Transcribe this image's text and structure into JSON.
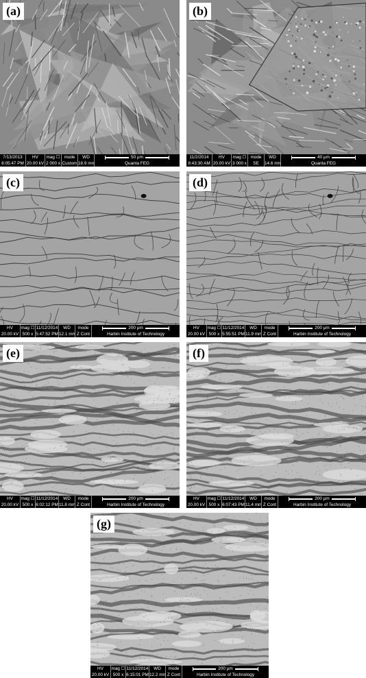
{
  "panels": [
    {
      "label": "(a)",
      "hv_label": "HV",
      "mag_label": "mag ☐",
      "mode_label": "mode",
      "wd_label": "WD",
      "date": "7/13/2013",
      "time": "8:05:47 PM",
      "hv": "20.00 kV",
      "mag": "2 000 x",
      "mode": "Custom",
      "wd": "18.9 mm",
      "scale": "50 μm",
      "instrument": "Quanta FEG"
    },
    {
      "label": "(b)",
      "hv_label": "HV",
      "mag_label": "mag ☐",
      "mode_label": "mode",
      "wd_label": "WD",
      "date": "11/2/2014",
      "time": "8:43:30 AM",
      "hv": "20.00 kV",
      "mag": "3 000 x",
      "mode": "SE",
      "wd": "14.6 mm",
      "scale": "40 μm",
      "instrument": "Quanta FEG"
    },
    {
      "label": "(c)",
      "hv_label": "HV",
      "mag_label": "mag ☐",
      "mode_label": "mode",
      "wd_label": "WD",
      "date": "11/12/2014",
      "time": "5:47:52 PM",
      "hv": "20.00 kV",
      "mag": "500 x",
      "mode": "Z Cont",
      "wd": "12.1 mm",
      "scale": "200 μm",
      "instrument": "Harbin Institute of Technology"
    },
    {
      "label": "(d)",
      "hv_label": "HV",
      "mag_label": "mag ☐",
      "mode_label": "mode",
      "wd_label": "WD",
      "date": "11/12/2014",
      "time": "5:55:51 PM",
      "hv": "20.00 kV",
      "mag": "500 x",
      "mode": "Z Cont",
      "wd": "11.9 mm",
      "scale": "200 μm",
      "instrument": "Harbin Institute of Technology"
    },
    {
      "label": "(e)",
      "hv_label": "HV",
      "mag_label": "mag ☐",
      "mode_label": "mode",
      "wd_label": "WD",
      "date": "11/12/2014",
      "time": "6:02:12 PM",
      "hv": "20.00 kV",
      "mag": "500 x",
      "mode": "Z Cont",
      "wd": "11.8 mm",
      "scale": "200 μm",
      "instrument": "Harbin Institute of Technology"
    },
    {
      "label": "(f)",
      "hv_label": "HV",
      "mag_label": "mag ☐",
      "mode_label": "mode",
      "wd_label": "WD",
      "date": "11/12/2014",
      "time": "6:07:43 PM",
      "hv": "20.00 kV",
      "mag": "500 x",
      "mode": "Z Cont",
      "wd": "11.4 mm",
      "scale": "200 μm",
      "instrument": "Harbin Institute of Technology"
    },
    {
      "label": "(g)",
      "hv_label": "HV",
      "mag_label": "mag ☐",
      "mode_label": "mode",
      "wd_label": "WD",
      "date": "11/12/2014",
      "time": "6:15:01 PM",
      "hv": "20.00 kV",
      "mag": "500 x",
      "mode": "Z Cont",
      "wd": "12.2 mm",
      "scale": "200 μm",
      "instrument": "Harbin Institute of Technology"
    }
  ]
}
